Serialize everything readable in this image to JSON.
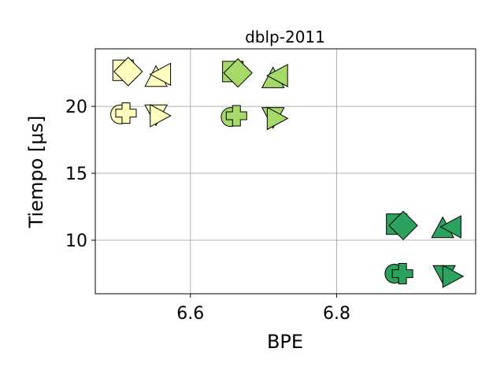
{
  "chart_data": {
    "type": "scatter",
    "title": "dblp-2011",
    "xlabel": "BPE",
    "ylabel": "Tiempo [μs]",
    "xlim": [
      6.47,
      6.99
    ],
    "ylim": [
      6,
      24.3
    ],
    "xticks": [
      6.6,
      6.8
    ],
    "xtick_labels": [
      "6.6",
      "6.8"
    ],
    "yticks": [
      10,
      15,
      20
    ],
    "ytick_labels": [
      "10",
      "15",
      "20"
    ],
    "grid": true,
    "legend": "none",
    "points": [
      {
        "x": 6.508,
        "y": 22.7,
        "marker": "square",
        "color": "#ffffbf"
      },
      {
        "x": 6.515,
        "y": 22.6,
        "marker": "diamond",
        "color": "#ffffbf"
      },
      {
        "x": 6.553,
        "y": 22.2,
        "marker": "triangle-up",
        "color": "#ffffbf"
      },
      {
        "x": 6.56,
        "y": 22.4,
        "marker": "triangle-left",
        "color": "#ffffbf"
      },
      {
        "x": 6.504,
        "y": 19.4,
        "marker": "circle",
        "color": "#ffffbf"
      },
      {
        "x": 6.512,
        "y": 19.5,
        "marker": "plus",
        "color": "#ffffbf"
      },
      {
        "x": 6.553,
        "y": 19.4,
        "marker": "triangle-down",
        "color": "#ffffbf"
      },
      {
        "x": 6.558,
        "y": 19.3,
        "marker": "triangle-right",
        "color": "#ffffbf"
      },
      {
        "x": 6.658,
        "y": 22.6,
        "marker": "square",
        "color": "#a6d96a"
      },
      {
        "x": 6.665,
        "y": 22.5,
        "marker": "diamond",
        "color": "#a6d96a"
      },
      {
        "x": 6.713,
        "y": 22.1,
        "marker": "triangle-up",
        "color": "#a6d96a"
      },
      {
        "x": 6.72,
        "y": 22.3,
        "marker": "triangle-left",
        "color": "#a6d96a"
      },
      {
        "x": 6.655,
        "y": 19.2,
        "marker": "circle",
        "color": "#a6d96a"
      },
      {
        "x": 6.663,
        "y": 19.3,
        "marker": "plus",
        "color": "#a6d96a"
      },
      {
        "x": 6.713,
        "y": 19.2,
        "marker": "triangle-down",
        "color": "#a6d96a"
      },
      {
        "x": 6.718,
        "y": 19.1,
        "marker": "triangle-right",
        "color": "#a6d96a"
      },
      {
        "x": 6.882,
        "y": 11.2,
        "marker": "square",
        "color": "#2ca25f"
      },
      {
        "x": 6.891,
        "y": 11.1,
        "marker": "diamond",
        "color": "#2ca25f"
      },
      {
        "x": 6.945,
        "y": 10.9,
        "marker": "triangle-up",
        "color": "#2ca25f"
      },
      {
        "x": 6.957,
        "y": 11.0,
        "marker": "triangle-left",
        "color": "#2ca25f"
      },
      {
        "x": 6.879,
        "y": 7.5,
        "marker": "circle",
        "color": "#2ca25f"
      },
      {
        "x": 6.89,
        "y": 7.5,
        "marker": "plus",
        "color": "#2ca25f"
      },
      {
        "x": 6.947,
        "y": 7.4,
        "marker": "triangle-down",
        "color": "#2ca25f"
      },
      {
        "x": 6.958,
        "y": 7.3,
        "marker": "triangle-right",
        "color": "#2ca25f"
      }
    ]
  }
}
